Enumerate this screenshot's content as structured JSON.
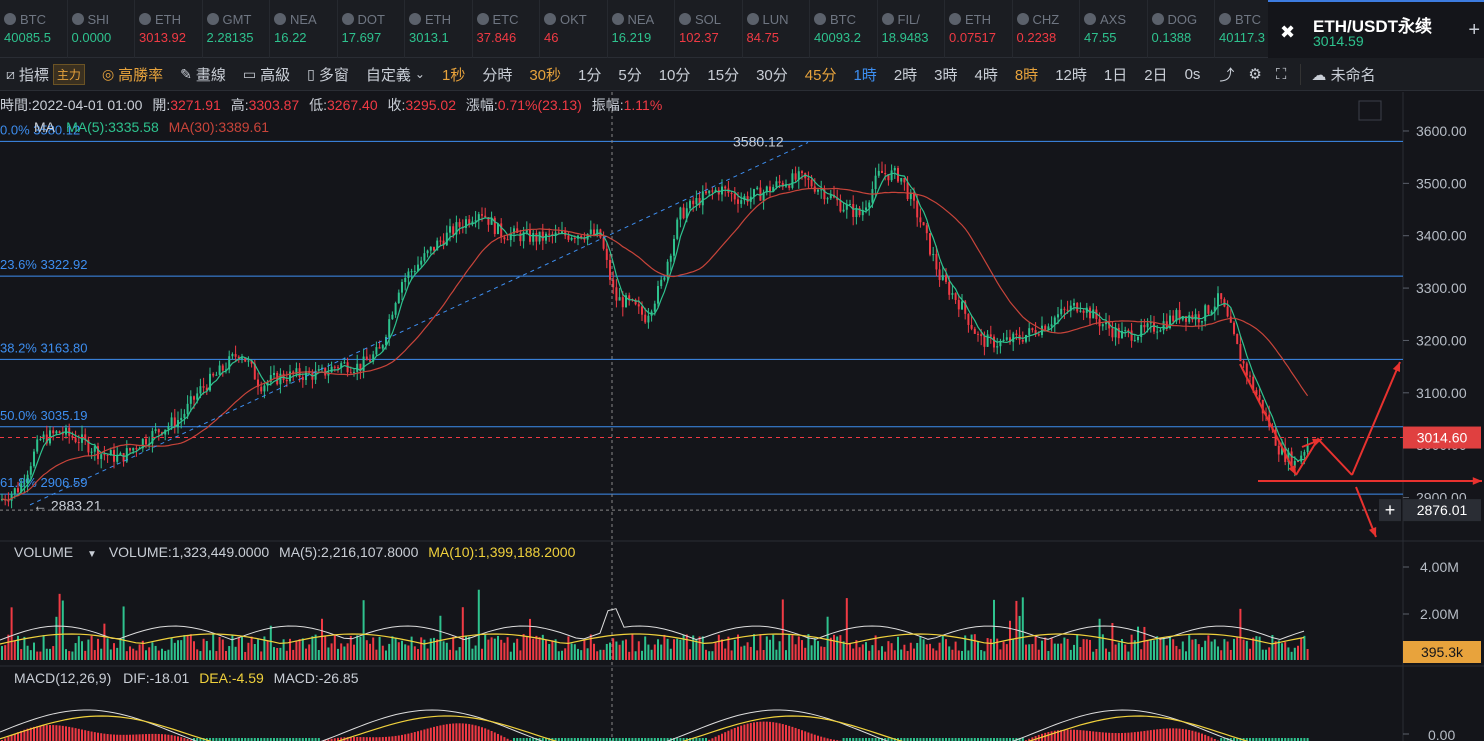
{
  "tickers": [
    {
      "symbol": "BTC",
      "price": "40085.5",
      "color": "#2ec28e"
    },
    {
      "symbol": "SHI",
      "price": "0.0000",
      "color": "#2ec28e"
    },
    {
      "symbol": "ETH",
      "price": "3013.92",
      "color": "#f03a44"
    },
    {
      "symbol": "GMT",
      "price": "2.28135",
      "color": "#2ec28e"
    },
    {
      "symbol": "NEA",
      "price": "16.22",
      "color": "#2ec28e"
    },
    {
      "symbol": "DOT",
      "price": "17.697",
      "color": "#2ec28e"
    },
    {
      "symbol": "ETH",
      "price": "3013.1",
      "color": "#2ec28e"
    },
    {
      "symbol": "ETC",
      "price": "37.846",
      "color": "#f03a44"
    },
    {
      "symbol": "OKT",
      "price": "46",
      "color": "#f03a44"
    },
    {
      "symbol": "NEA",
      "price": "16.219",
      "color": "#2ec28e"
    },
    {
      "symbol": "SOL",
      "price": "102.37",
      "color": "#f03a44"
    },
    {
      "symbol": "LUN",
      "price": "84.75",
      "color": "#f03a44"
    },
    {
      "symbol": "BTC",
      "price": "40093.2",
      "color": "#2ec28e"
    },
    {
      "symbol": "FIL/",
      "price": "18.9483",
      "color": "#2ec28e"
    },
    {
      "symbol": "ETH",
      "price": "0.07517",
      "color": "#f03a44"
    },
    {
      "symbol": "CHZ",
      "price": "0.2238",
      "color": "#f03a44"
    },
    {
      "symbol": "AXS",
      "price": "47.55",
      "color": "#2ec28e"
    },
    {
      "symbol": "DOG",
      "price": "0.1388",
      "color": "#2ec28e"
    },
    {
      "symbol": "BTC",
      "price": "40117.3",
      "color": "#2ec28e"
    }
  ],
  "active": {
    "name": "ETH/USDT永续",
    "price": "3014.59",
    "logo": "✖"
  },
  "toolbar": [
    {
      "label": "指標",
      "icon": "indicator-icon",
      "tag": "主力"
    },
    {
      "label": "高勝率",
      "icon": "target-icon",
      "on": true
    },
    {
      "label": "畫線",
      "icon": "pencil-icon"
    },
    {
      "label": "高級",
      "icon": "calendar-icon"
    },
    {
      "label": "多窗",
      "icon": "windows-icon"
    },
    {
      "label": "自定義",
      "icon": "chevron-down-icon"
    },
    {
      "label": "1秒",
      "on": true
    },
    {
      "label": "分時"
    },
    {
      "label": "30秒",
      "on": true
    },
    {
      "label": "1分"
    },
    {
      "label": "5分"
    },
    {
      "label": "10分"
    },
    {
      "label": "15分"
    },
    {
      "label": "30分"
    },
    {
      "label": "45分",
      "on": true
    },
    {
      "label": "1時",
      "blue": true
    },
    {
      "label": "2時"
    },
    {
      "label": "3時"
    },
    {
      "label": "4時"
    },
    {
      "label": "8時",
      "on": true
    },
    {
      "label": "12時"
    },
    {
      "label": "1日"
    },
    {
      "label": "2日"
    },
    {
      "label": "0s"
    }
  ],
  "toolbar_right": {
    "layout_name": "未命名"
  },
  "info": {
    "time_label": "時間:",
    "time": "2022-04-01 01:00",
    "open_label": "開:",
    "open": "3271.91",
    "high_label": "高:",
    "high": "3303.87",
    "low_label": "低:",
    "low": "3267.40",
    "close_label": "收:",
    "close": "3295.02",
    "change_label": "漲幅:",
    "change": "0.71%(23.13)",
    "amp_label": "振幅:",
    "amp": "1.11%"
  },
  "ma": {
    "name": "MA",
    "ma5": "MA(5):3335.58",
    "ma30": "MA(30):3389.61",
    "ma5_color": "#2ec28e",
    "ma30_color": "#c8443a"
  },
  "volume": {
    "name": "VOLUME",
    "value": "VOLUME:1,323,449.0000",
    "ma5": "MA(5):2,216,107.8000",
    "ma10": "MA(10):1,399,188.2000"
  },
  "macd": {
    "name": "MACD(12,26,9)",
    "dif": "DIF:-18.01",
    "dea": "DEA:-4.59",
    "macd": "MACD:-26.85"
  },
  "price_axis": [
    "3600.00",
    "3500.00",
    "3400.00",
    "3300.00",
    "3200.00",
    "3100.00",
    "3000.00",
    "2900.00"
  ],
  "price_marks": {
    "current": "3014.60",
    "cursor": "2876.01",
    "peak": "3580.12",
    "low": "2883.21",
    "vol_current": "395.3k"
  },
  "fib": [
    {
      "label": "0.0% 3580.12",
      "price": 3580.12
    },
    {
      "label": "23.6% 3322.92",
      "price": 3322.92
    },
    {
      "label": "38.2% 3163.80",
      "price": 3163.8
    },
    {
      "label": "50.0% 3035.19",
      "price": 3035.19
    },
    {
      "label": "61.8% 2906.59",
      "price": 2906.59
    }
  ],
  "volume_axis": [
    "4.00M",
    "2.00M"
  ],
  "macd_axis": [
    "0.00"
  ],
  "chart_data": {
    "type": "candlestick",
    "symbol": "ETH/USDT",
    "interval": "1時",
    "ylim": [
      2860,
      3620
    ],
    "key_prices": {
      "peak": 3580.12,
      "low": 2883.21,
      "last": 3014.6
    },
    "close_path": [
      [
        0,
        2895
      ],
      [
        20,
        2920
      ],
      [
        40,
        3010
      ],
      [
        60,
        3025
      ],
      [
        80,
        3010
      ],
      [
        100,
        2985
      ],
      [
        120,
        2975
      ],
      [
        140,
        3005
      ],
      [
        160,
        3030
      ],
      [
        180,
        3050
      ],
      [
        200,
        3105
      ],
      [
        220,
        3140
      ],
      [
        240,
        3180
      ],
      [
        250,
        3150
      ],
      [
        260,
        3115
      ],
      [
        280,
        3130
      ],
      [
        300,
        3135
      ],
      [
        320,
        3135
      ],
      [
        340,
        3155
      ],
      [
        360,
        3150
      ],
      [
        380,
        3180
      ],
      [
        400,
        3310
      ],
      [
        420,
        3350
      ],
      [
        440,
        3390
      ],
      [
        460,
        3420
      ],
      [
        480,
        3450
      ],
      [
        500,
        3405
      ],
      [
        520,
        3400
      ],
      [
        540,
        3395
      ],
      [
        560,
        3400
      ],
      [
        580,
        3405
      ],
      [
        600,
        3400
      ],
      [
        615,
        3280
      ],
      [
        630,
        3270
      ],
      [
        645,
        3245
      ],
      [
        660,
        3300
      ],
      [
        680,
        3440
      ],
      [
        700,
        3470
      ],
      [
        720,
        3490
      ],
      [
        740,
        3470
      ],
      [
        760,
        3480
      ],
      [
        780,
        3500
      ],
      [
        800,
        3510
      ],
      [
        820,
        3490
      ],
      [
        840,
        3460
      ],
      [
        860,
        3440
      ],
      [
        880,
        3520
      ],
      [
        900,
        3515
      ],
      [
        920,
        3430
      ],
      [
        940,
        3320
      ],
      [
        960,
        3270
      ],
      [
        980,
        3200
      ],
      [
        1000,
        3195
      ],
      [
        1020,
        3205
      ],
      [
        1040,
        3225
      ],
      [
        1060,
        3250
      ],
      [
        1080,
        3270
      ],
      [
        1100,
        3235
      ],
      [
        1120,
        3210
      ],
      [
        1140,
        3215
      ],
      [
        1160,
        3230
      ],
      [
        1180,
        3250
      ],
      [
        1200,
        3245
      ],
      [
        1220,
        3280
      ],
      [
        1240,
        3170
      ],
      [
        1260,
        3080
      ],
      [
        1280,
        2990
      ],
      [
        1295,
        2965
      ],
      [
        1310,
        3010
      ]
    ]
  }
}
